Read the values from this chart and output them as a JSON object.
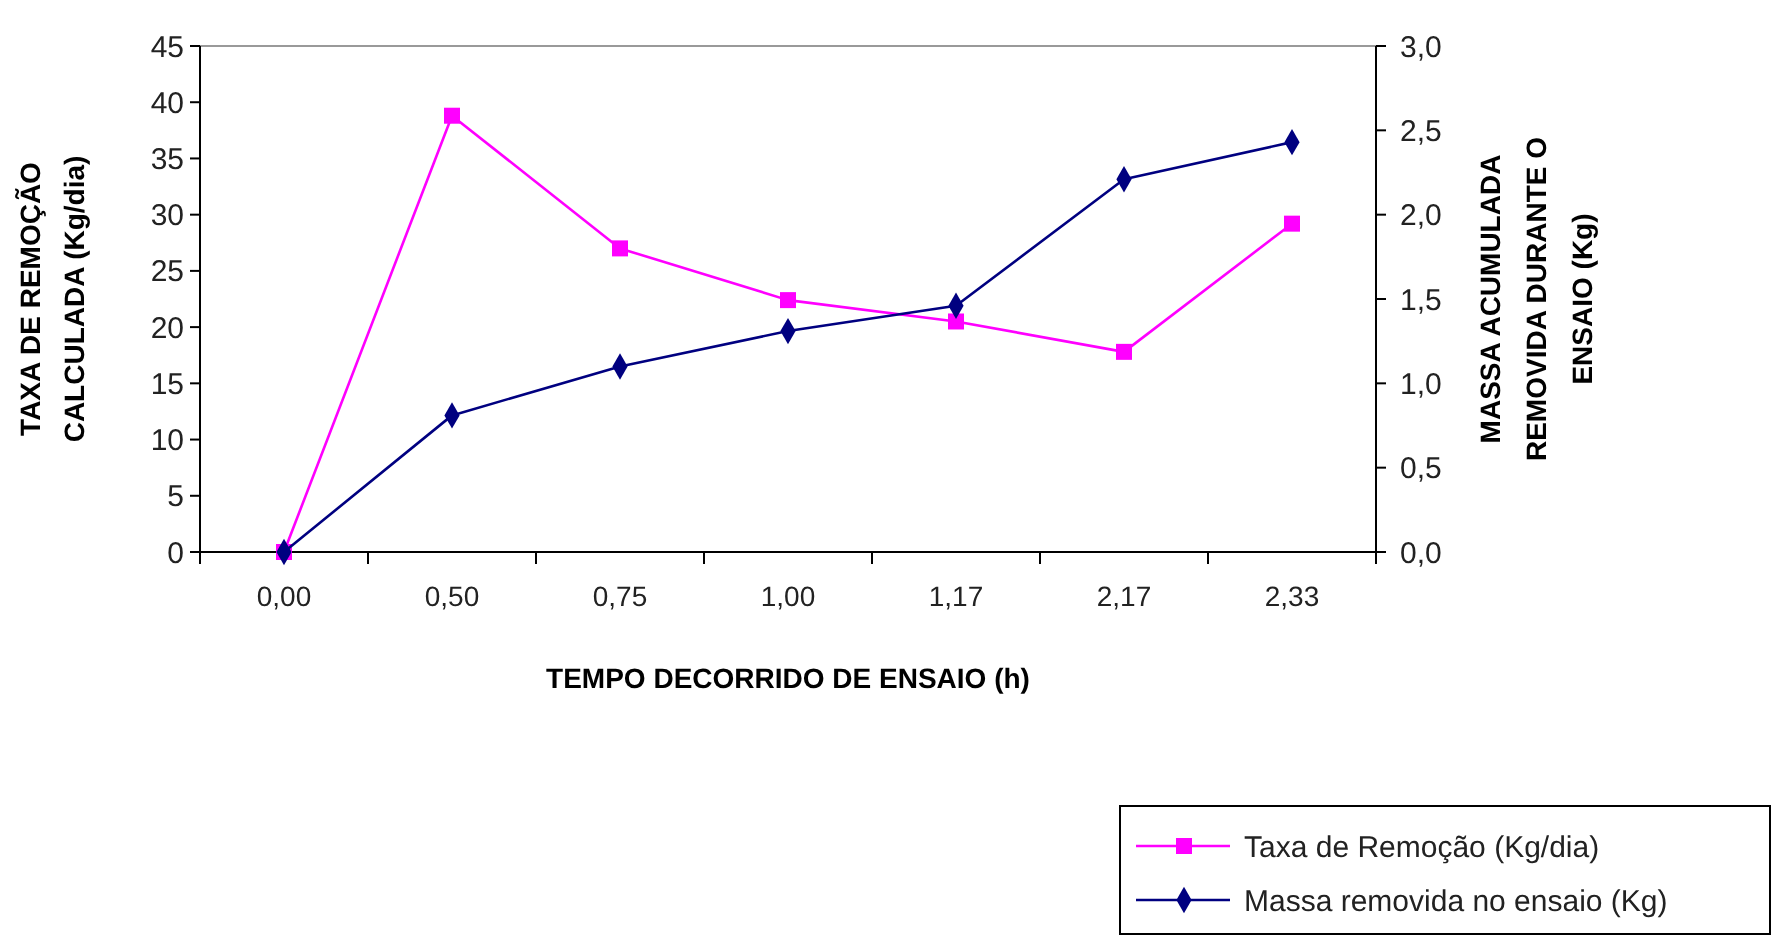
{
  "chart_data": {
    "type": "line",
    "categories": [
      "0,00",
      "0,50",
      "0,75",
      "1,00",
      "1,17",
      "2,17",
      "2,33"
    ],
    "xlabel": "TEMPO DECORRIDO DE ENSAIO (h)",
    "ylabel": "TAXA DE REMOÇÃO CALCULADA (Kg/dia)",
    "y2label": "MASSA ACUMULADA REMOVIDA DURANTE O ENSAIO (Kg)",
    "ylim": [
      0,
      45
    ],
    "yticks": [
      0,
      5,
      10,
      15,
      20,
      25,
      30,
      35,
      40,
      45
    ],
    "y2lim": [
      0,
      3
    ],
    "y2ticks": [
      {
        "value": 0,
        "label": "0,0"
      },
      {
        "value": 0.5,
        "label": "0,5"
      },
      {
        "value": 1,
        "label": "1,0"
      },
      {
        "value": 1.5,
        "label": "1,5"
      },
      {
        "value": 2,
        "label": "2,0"
      },
      {
        "value": 2.5,
        "label": "2,5"
      },
      {
        "value": 3,
        "label": "3,0"
      }
    ],
    "grid": false,
    "legend": "bottom right",
    "series": [
      {
        "name": "Taxa de Remoção (Kg/dia)",
        "color": "#ff00ff",
        "marker": "square",
        "values": [
          0,
          38.8,
          27,
          22.4,
          20.5,
          17.8,
          29.2
        ]
      },
      {
        "name": "Massa removida no ensaio (Kg)",
        "color": "#000080",
        "marker": "diamond",
        "axis": "y2",
        "values": [
          0,
          0.81,
          1.1,
          1.31,
          1.46,
          2.21,
          2.43
        ]
      }
    ]
  }
}
